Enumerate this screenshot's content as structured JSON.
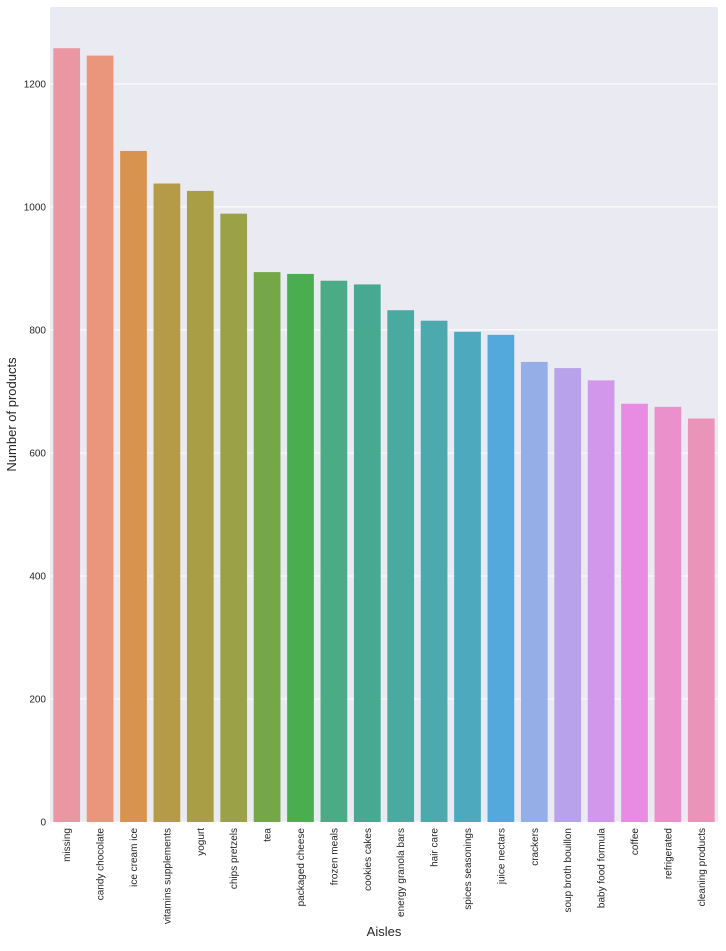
{
  "chart_data": {
    "type": "bar",
    "xlabel": "Aisles",
    "ylabel": "Number of products",
    "categories": [
      "missing",
      "candy chocolate",
      "ice cream ice",
      "vitamins supplements",
      "yogurt",
      "chips pretzels",
      "tea",
      "packaged cheese",
      "frozen meals",
      "cookies cakes",
      "energy granola bars",
      "hair care",
      "spices seasonings",
      "juice nectars",
      "crackers",
      "soup broth bouillon",
      "baby food formula",
      "coffee",
      "refrigerated",
      "cleaning products"
    ],
    "values": [
      1258,
      1246,
      1091,
      1038,
      1026,
      989,
      894,
      891,
      880,
      874,
      832,
      815,
      797,
      792,
      748,
      738,
      718,
      680,
      675,
      656
    ],
    "colors": [
      "#ea96a3",
      "#e9967d",
      "#d8944e",
      "#b59b47",
      "#a99e45",
      "#9aa147",
      "#73a748",
      "#4aad4f",
      "#4aab86",
      "#48a993",
      "#4aa9a0",
      "#4ca9ae",
      "#4da9be",
      "#53a8dc",
      "#96aee8",
      "#b9a2ec",
      "#d297ea",
      "#e98ae3",
      "#ea91cc",
      "#eb94ba"
    ],
    "yticks": [
      0,
      200,
      400,
      600,
      800,
      1000,
      1200
    ],
    "ylim": [
      0,
      1325
    ],
    "grid": true,
    "background": "#eaeaf2",
    "grid_color": "#ffffff"
  }
}
